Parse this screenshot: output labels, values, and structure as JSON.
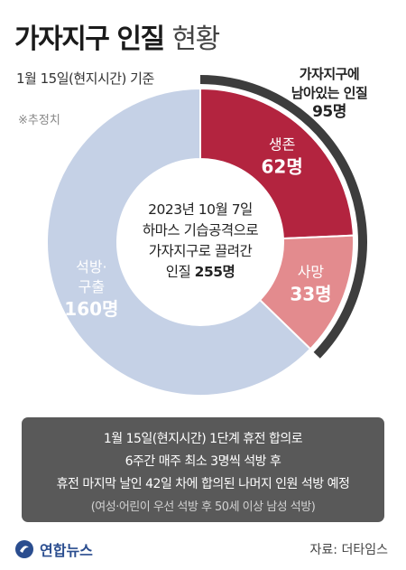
{
  "header": {
    "title_bold": "가자지구 인질",
    "title_light": "현황",
    "subtitle": "1월 15일(현지시간) 기준",
    "note": "※추정치"
  },
  "callout": {
    "line1": "가자지구에",
    "line2": "남아있는 인질",
    "value": "95명"
  },
  "center": {
    "line1": "2023년 10월 7일",
    "line2": "하마스 기습공격으로",
    "line3": "가자지구로 끌려간",
    "line4_prefix": "인질",
    "line4_value": "255명"
  },
  "chart_data": {
    "type": "pie",
    "title": "가자지구 인질 현황",
    "total": 255,
    "slices": [
      {
        "label_line1": "생존",
        "label_line2": "",
        "value": 62,
        "value_label": "62명",
        "color": "#b3243f"
      },
      {
        "label_line1": "사망",
        "label_line2": "",
        "value": 33,
        "value_label": "33명",
        "color": "#e38b8e"
      },
      {
        "label_line1": "석방·",
        "label_line2": "구출",
        "value": 160,
        "value_label": "160명",
        "color": "#c5d1e6"
      }
    ],
    "remaining_arc_value": 95
  },
  "info": {
    "line1": "1월 15일(현지시간) 1단계 휴전 합의로",
    "line2": "6주간 매주 최소 3명씩 석방 후",
    "line3": "휴전 마지막 날인 42일 차에 합의된 나머지 인원 석방 예정",
    "line4": "(여성·어린이 우선 석방 후 50세 이상 남성 석방)"
  },
  "footer": {
    "logo": "연합뉴스",
    "source": "자료: 더타임스"
  },
  "colors": {
    "survived": "#b3243f",
    "dead": "#e38b8e",
    "released": "#c5d1e6",
    "arc": "#3d3d3d",
    "infobox": "#595959"
  }
}
